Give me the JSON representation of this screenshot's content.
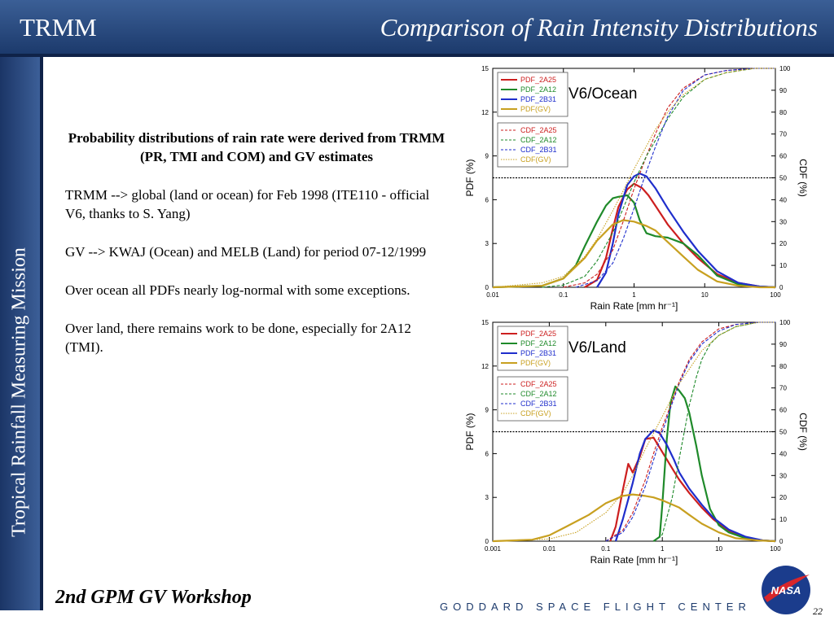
{
  "header": {
    "brand": "TRMM",
    "title": "Comparison of Rain Intensity Distributions"
  },
  "sidebar": {
    "text": "Tropical Rainfall Measuring Mission"
  },
  "body": {
    "lead": "Probability distributions of rain rate were derived from TRMM (PR, TMI and COM) and GV estimates",
    "p1": "TRMM -->  global (land or ocean) for Feb 1998 (ITE110 - official V6, thanks to S. Yang)",
    "p2": "GV -->  KWAJ (Ocean) and MELB (Land) for period 07-12/1999",
    "p3": "Over ocean all PDFs nearly log-normal with some exceptions.",
    "p4": "Over land, there remains work to be done, especially for 2A12 (TMI)."
  },
  "footer": {
    "left": "2nd GPM GV Workshop",
    "center": "GODDARD SPACE FLIGHT CENTER",
    "page": "22",
    "logo": "NASA"
  },
  "colors": {
    "2A25": "#cc1f1f",
    "2A12": "#1f8a2a",
    "2B31": "#1f2ecc",
    "GV": "#c8a020",
    "header": "#2a4a80"
  },
  "chart_data": [
    {
      "type": "line",
      "title": "V6/Ocean",
      "xlabel": "Rain Rate [mm hr⁻¹]",
      "ylabel": "PDF  (%)",
      "y2label": "CDF  (%)",
      "xscale": "log",
      "xlim": [
        0.01,
        100
      ],
      "xticks": [
        "0.01",
        "0.1",
        "1",
        "10",
        "100"
      ],
      "ylim": [
        0,
        15
      ],
      "yticks": [
        "0",
        "3",
        "6",
        "9",
        "12",
        "15"
      ],
      "y2lim": [
        0,
        100
      ],
      "y2ticks": [
        "0",
        "10",
        "20",
        "30",
        "40",
        "50",
        "60",
        "70",
        "80",
        "90",
        "100"
      ],
      "ref_line_pdf": 7.5,
      "legend_position": "top-left",
      "series": [
        {
          "name": "PDF_2A25",
          "axis": "pdf",
          "style": "solid",
          "color_key": "2A25",
          "x": [
            0.2,
            0.3,
            0.4,
            0.5,
            0.6,
            0.8,
            1.0,
            1.3,
            1.6,
            2,
            3,
            5,
            8,
            15,
            30,
            60,
            100
          ],
          "y": [
            0,
            0.5,
            2,
            4,
            5.5,
            6.7,
            7.1,
            6.8,
            6.3,
            5.6,
            4.3,
            3.0,
            2.0,
            0.9,
            0.3,
            0.05,
            0
          ]
        },
        {
          "name": "PDF_2A12",
          "axis": "pdf",
          "style": "solid",
          "color_key": "2A12",
          "x": [
            0.01,
            0.05,
            0.1,
            0.15,
            0.2,
            0.3,
            0.4,
            0.5,
            0.6,
            0.8,
            1.0,
            1.2,
            1.5,
            2,
            3,
            5,
            8,
            15,
            30,
            60,
            100
          ],
          "y": [
            0,
            0.1,
            0.6,
            1.5,
            2.8,
            4.5,
            5.6,
            6.1,
            6.2,
            6.3,
            5.8,
            4.6,
            3.7,
            3.5,
            3.4,
            3.0,
            2.2,
            0.8,
            0.2,
            0.05,
            0
          ]
        },
        {
          "name": "PDF_2B31",
          "axis": "pdf",
          "style": "solid",
          "color_key": "2B31",
          "x": [
            0.3,
            0.4,
            0.5,
            0.6,
            0.8,
            1.0,
            1.2,
            1.5,
            2,
            3,
            5,
            8,
            15,
            30,
            60,
            100
          ],
          "y": [
            0,
            1.0,
            3,
            5,
            7,
            7.6,
            7.8,
            7.6,
            6.8,
            5.4,
            3.8,
            2.5,
            1.1,
            0.3,
            0.05,
            0
          ]
        },
        {
          "name": "PDF(GV)",
          "axis": "pdf",
          "style": "solid",
          "color_key": "GV",
          "x": [
            0.01,
            0.05,
            0.1,
            0.2,
            0.3,
            0.5,
            0.7,
            1.0,
            1.5,
            2,
            3,
            5,
            8,
            15,
            30,
            60,
            100
          ],
          "y": [
            0,
            0.1,
            0.6,
            2.0,
            3.2,
            4.3,
            4.6,
            4.5,
            4.2,
            3.9,
            3.1,
            2.1,
            1.2,
            0.4,
            0.1,
            0,
            0
          ]
        },
        {
          "name": "CDF_2A25",
          "axis": "cdf",
          "style": "dashed",
          "color_key": "2A25",
          "x": [
            0.1,
            0.2,
            0.3,
            0.5,
            0.7,
            1,
            1.5,
            2,
            3,
            5,
            10,
            20,
            50,
            100
          ],
          "y": [
            0,
            2,
            6,
            17,
            30,
            45,
            60,
            70,
            82,
            91,
            97,
            99,
            100,
            100
          ]
        },
        {
          "name": "CDF_2A12",
          "axis": "cdf",
          "style": "dashed",
          "color_key": "2A12",
          "x": [
            0.05,
            0.1,
            0.2,
            0.3,
            0.5,
            0.7,
            1,
            1.5,
            2,
            3,
            5,
            10,
            20,
            50,
            100
          ],
          "y": [
            0,
            1,
            5,
            12,
            25,
            36,
            48,
            60,
            67,
            77,
            87,
            95,
            98,
            100,
            100
          ]
        },
        {
          "name": "CDF_2B31",
          "axis": "cdf",
          "style": "dashed",
          "color_key": "2B31",
          "x": [
            0.15,
            0.3,
            0.5,
            0.7,
            1,
            1.5,
            2,
            3,
            5,
            10,
            20,
            50,
            100
          ],
          "y": [
            0,
            3,
            11,
            22,
            36,
            53,
            64,
            78,
            90,
            97,
            99,
            100,
            100
          ]
        },
        {
          "name": "CDF(GV)",
          "axis": "cdf",
          "style": "dotted",
          "color_key": "GV",
          "x": [
            0.01,
            0.05,
            0.1,
            0.2,
            0.3,
            0.5,
            0.7,
            1,
            2,
            3,
            5,
            10,
            20,
            50,
            100
          ],
          "y": [
            0,
            2,
            5,
            14,
            22,
            35,
            44,
            54,
            72,
            80,
            88,
            95,
            98,
            100,
            100
          ]
        }
      ]
    },
    {
      "type": "line",
      "title": "V6/Land",
      "xlabel": "Rain Rate [mm hr⁻¹]",
      "ylabel": "PDF  (%)",
      "y2label": "CDF  (%)",
      "xscale": "log",
      "xlim": [
        0.001,
        100
      ],
      "xticks": [
        "0.001",
        "0.01",
        "0.1",
        "1",
        "10",
        "100"
      ],
      "ylim": [
        0,
        15
      ],
      "yticks": [
        "0",
        "3",
        "6",
        "9",
        "12",
        "15"
      ],
      "y2lim": [
        0,
        100
      ],
      "y2ticks": [
        "0",
        "10",
        "20",
        "30",
        "40",
        "50",
        "60",
        "70",
        "80",
        "90",
        "100"
      ],
      "ref_line_pdf": 7.5,
      "legend_position": "top-left",
      "series": [
        {
          "name": "PDF_2A25",
          "axis": "pdf",
          "style": "solid",
          "color_key": "2A25",
          "x": [
            0.12,
            0.15,
            0.2,
            0.25,
            0.3,
            0.4,
            0.5,
            0.7,
            0.9,
            1.2,
            1.6,
            2,
            3,
            5,
            8,
            15,
            30,
            60,
            100
          ],
          "y": [
            0,
            1.0,
            3.5,
            5.3,
            4.7,
            5.8,
            7.0,
            7.1,
            6.4,
            5.6,
            4.8,
            4.2,
            3.3,
            2.3,
            1.5,
            0.7,
            0.25,
            0.05,
            0
          ]
        },
        {
          "name": "PDF_2A12",
          "axis": "pdf",
          "style": "solid",
          "color_key": "2A12",
          "x": [
            0.7,
            0.9,
            1.0,
            1.2,
            1.4,
            1.7,
            2,
            2.5,
            3,
            4,
            5,
            7,
            10,
            15,
            30,
            60,
            100
          ],
          "y": [
            0,
            0.3,
            2.5,
            7.0,
            9.5,
            10.6,
            10.3,
            9.8,
            8.8,
            6.5,
            4.5,
            2.2,
            1.1,
            0.6,
            0.2,
            0.05,
            0
          ]
        },
        {
          "name": "PDF_2B31",
          "axis": "pdf",
          "style": "solid",
          "color_key": "2B31",
          "x": [
            0.15,
            0.2,
            0.3,
            0.4,
            0.5,
            0.7,
            0.9,
            1.2,
            1.6,
            2,
            3,
            5,
            8,
            15,
            30,
            60,
            100
          ],
          "y": [
            0,
            1.5,
            4.0,
            6.0,
            7.0,
            7.6,
            7.4,
            6.6,
            5.6,
            4.7,
            3.6,
            2.5,
            1.6,
            0.8,
            0.3,
            0.05,
            0
          ]
        },
        {
          "name": "PDF(GV)",
          "axis": "pdf",
          "style": "solid",
          "color_key": "GV",
          "x": [
            0.001,
            0.005,
            0.01,
            0.02,
            0.05,
            0.1,
            0.2,
            0.3,
            0.5,
            0.7,
            1,
            2,
            3,
            5,
            10,
            20,
            50,
            100
          ],
          "y": [
            0,
            0.1,
            0.4,
            1.0,
            1.8,
            2.6,
            3.1,
            3.2,
            3.1,
            3.0,
            2.8,
            2.3,
            1.8,
            1.2,
            0.6,
            0.2,
            0.05,
            0
          ]
        },
        {
          "name": "CDF_2A25",
          "axis": "cdf",
          "style": "dashed",
          "color_key": "2A25",
          "x": [
            0.1,
            0.2,
            0.3,
            0.5,
            0.7,
            1,
            1.5,
            2,
            3,
            5,
            10,
            20,
            50,
            100
          ],
          "y": [
            0,
            5,
            13,
            28,
            40,
            52,
            64,
            73,
            83,
            91,
            97,
            99,
            100,
            100
          ]
        },
        {
          "name": "CDF_2A12",
          "axis": "cdf",
          "style": "dashed",
          "color_key": "2A12",
          "x": [
            0.7,
            1,
            1.5,
            2,
            3,
            4,
            5,
            7,
            10,
            20,
            50,
            100
          ],
          "y": [
            0,
            3,
            20,
            38,
            62,
            75,
            83,
            90,
            94,
            98,
            100,
            100
          ]
        },
        {
          "name": "CDF_2B31",
          "axis": "cdf",
          "style": "dashed",
          "color_key": "2B31",
          "x": [
            0.1,
            0.2,
            0.3,
            0.5,
            0.7,
            1,
            1.5,
            2,
            3,
            5,
            10,
            20,
            50,
            100
          ],
          "y": [
            0,
            4,
            11,
            25,
            37,
            50,
            63,
            72,
            82,
            90,
            96,
            99,
            100,
            100
          ]
        },
        {
          "name": "CDF(GV)",
          "axis": "cdf",
          "style": "dotted",
          "color_key": "GV",
          "x": [
            0.001,
            0.01,
            0.03,
            0.1,
            0.2,
            0.3,
            0.5,
            1,
            2,
            5,
            10,
            20,
            50,
            100
          ],
          "y": [
            0,
            1,
            4,
            13,
            22,
            30,
            42,
            57,
            72,
            87,
            94,
            98,
            100,
            100
          ]
        }
      ]
    }
  ]
}
